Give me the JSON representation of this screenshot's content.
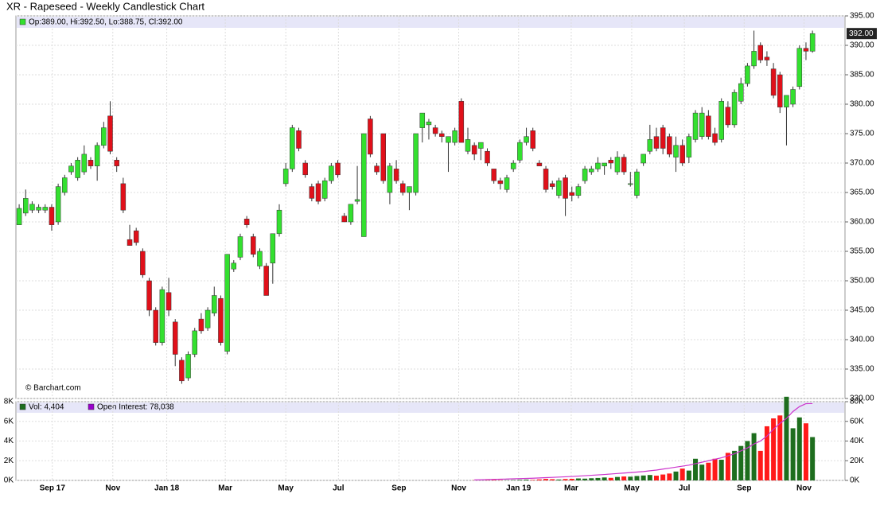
{
  "chart_data": {
    "type": "candlestick",
    "title": "XR - Rapeseed - Weekly Candlestick Chart",
    "ohlc_label": "Op:389.00, Hi:392.50, Lo:388.75, Cl:392.00",
    "volume_label": "Vol: 4,404",
    "oi_label": "Open Interest: 78,038",
    "source": "© Barchart.com",
    "last_price_label": "392.00",
    "up_color": "#33e02f",
    "down_color": "#e0101a",
    "volume_up_color": "#1e6e1e",
    "volume_down_color": "#ff1a1a",
    "oi_color": "#cc33cc",
    "grid": true,
    "xlim": [
      -0.5,
      127
    ],
    "xticks": [
      {
        "value": 5.1,
        "label": "Sep 17"
      },
      {
        "value": 14.4,
        "label": "Nov"
      },
      {
        "value": 22.7,
        "label": "Jan 18"
      },
      {
        "value": 31.7,
        "label": "Mar"
      },
      {
        "value": 41,
        "label": "May"
      },
      {
        "value": 49.1,
        "label": "Jul"
      },
      {
        "value": 58.4,
        "label": "Sep"
      },
      {
        "value": 67.6,
        "label": "Nov"
      },
      {
        "value": 76.8,
        "label": "Jan 19"
      },
      {
        "value": 84.9,
        "label": "Mar"
      },
      {
        "value": 94.2,
        "label": "May"
      },
      {
        "value": 102.3,
        "label": "Jul"
      },
      {
        "value": 111.5,
        "label": "Sep"
      },
      {
        "value": 120.7,
        "label": "Nov"
      }
    ],
    "ylim": [
      330,
      395
    ],
    "yticks": [
      {
        "value": 330,
        "label": "330.00"
      },
      {
        "value": 335,
        "label": "335.00"
      },
      {
        "value": 340,
        "label": "340.00"
      },
      {
        "value": 345,
        "label": "345.00"
      },
      {
        "value": 350,
        "label": "350.00"
      },
      {
        "value": 355,
        "label": "355.00"
      },
      {
        "value": 360,
        "label": "360.00"
      },
      {
        "value": 365,
        "label": "365.00"
      },
      {
        "value": 370,
        "label": "370.00"
      },
      {
        "value": 375,
        "label": "375.00"
      },
      {
        "value": 380,
        "label": "380.00"
      },
      {
        "value": 385,
        "label": "385.00"
      },
      {
        "value": 390,
        "label": "390.00"
      },
      {
        "value": 395,
        "label": "395.00"
      }
    ],
    "vol_lim": [
      0,
      8000
    ],
    "vol_ticks": [
      {
        "value": 0,
        "label": "0K"
      },
      {
        "value": 2000,
        "label": "2K"
      },
      {
        "value": 4000,
        "label": "4K"
      },
      {
        "value": 6000,
        "label": "6K"
      },
      {
        "value": 8000,
        "label": "8K"
      }
    ],
    "oi_lim": [
      0,
      80000
    ],
    "oi_ticks": [
      {
        "value": 0,
        "label": "0K"
      },
      {
        "value": 20000,
        "label": "20K"
      },
      {
        "value": 40000,
        "label": "40K"
      },
      {
        "value": 60000,
        "label": "60K"
      },
      {
        "value": 80000,
        "label": "80K"
      }
    ],
    "ohlc": [
      [
        359.5,
        363,
        359.5,
        362.3
      ],
      [
        361.5,
        365.5,
        361,
        364
      ],
      [
        362,
        363.5,
        361.5,
        363
      ],
      [
        362,
        363,
        361.5,
        362.5
      ],
      [
        362,
        363,
        361.5,
        362.5
      ],
      [
        362.5,
        363,
        358.5,
        359.5
      ],
      [
        360,
        366.5,
        359.5,
        366
      ],
      [
        365,
        368,
        364.5,
        367.5
      ],
      [
        368.5,
        370,
        368,
        369.5
      ],
      [
        367.5,
        371,
        367,
        370.5
      ],
      [
        368.5,
        373,
        368,
        371.5
      ],
      [
        370.5,
        371,
        369,
        369.5
      ],
      [
        369.5,
        373.5,
        367,
        373
      ],
      [
        373,
        377,
        372.5,
        376
      ],
      [
        378,
        380.5,
        371.5,
        372
      ],
      [
        370.5,
        371,
        368.5,
        369.5
      ],
      [
        366.5,
        367.5,
        361.5,
        362
      ],
      [
        357,
        359.5,
        356,
        356
      ],
      [
        358.5,
        359,
        356,
        356.5
      ],
      [
        355,
        355.5,
        350.5,
        351
      ],
      [
        350,
        350.5,
        344,
        345
      ],
      [
        345,
        345.5,
        339,
        339.5
      ],
      [
        339.5,
        349,
        339,
        348.5
      ],
      [
        348,
        350.5,
        344,
        345
      ],
      [
        343,
        343.5,
        335.5,
        337.5
      ],
      [
        336.5,
        337,
        332.5,
        333
      ],
      [
        333.5,
        338,
        333,
        337.5
      ],
      [
        337.5,
        342,
        337,
        341.5
      ],
      [
        343.5,
        344.5,
        341,
        341.5
      ],
      [
        342,
        345.5,
        341.5,
        345
      ],
      [
        344.5,
        349,
        344,
        347.5
      ],
      [
        347,
        347.5,
        339,
        339.5
      ],
      [
        338,
        354.5,
        337.5,
        354.5
      ],
      [
        352,
        353.5,
        351.5,
        353
      ],
      [
        354,
        358,
        353.5,
        357.5
      ],
      [
        360.5,
        361,
        359,
        359.5
      ],
      [
        357.5,
        358,
        354,
        354.5
      ],
      [
        352.5,
        355.5,
        352,
        355
      ],
      [
        352.5,
        353,
        347.5,
        347.5
      ],
      [
        353,
        358,
        349.5,
        358
      ],
      [
        358,
        363,
        357.5,
        362
      ],
      [
        366.5,
        370,
        366,
        369
      ],
      [
        369,
        376.5,
        368.5,
        376
      ],
      [
        375.5,
        376,
        372,
        372.5
      ],
      [
        370,
        370.5,
        367.5,
        368
      ],
      [
        366,
        366.5,
        363.5,
        364
      ],
      [
        366.5,
        367,
        363,
        363.5
      ],
      [
        364,
        367.5,
        363.5,
        367
      ],
      [
        367,
        370,
        366.5,
        369.5
      ],
      [
        370,
        370.5,
        367.5,
        368
      ],
      [
        361,
        361.5,
        360,
        360
      ],
      [
        360,
        363,
        359.5,
        363
      ],
      [
        363.5,
        369.5,
        363,
        363.8
      ],
      [
        357.5,
        375,
        357.5,
        375
      ],
      [
        377.5,
        378,
        371,
        371.5
      ],
      [
        369.5,
        370,
        368,
        368.5
      ],
      [
        375,
        375,
        366.5,
        367
      ],
      [
        365,
        370,
        363,
        369.5
      ],
      [
        369,
        370.5,
        366.5,
        367
      ],
      [
        366.5,
        367,
        364.5,
        365
      ],
      [
        365,
        366,
        362,
        366
      ],
      [
        365,
        375,
        364.5,
        375
      ],
      [
        376,
        378.5,
        373.5,
        378.5
      ],
      [
        376.5,
        377.5,
        374,
        377
      ],
      [
        376,
        376.5,
        374.5,
        375
      ],
      [
        375,
        375.5,
        373.5,
        374.5
      ],
      [
        373.5,
        374.5,
        368.5,
        374.5
      ],
      [
        373.5,
        376,
        373,
        375.5
      ],
      [
        380.5,
        381,
        373.5,
        373.5
      ],
      [
        372,
        376,
        371.5,
        374
      ],
      [
        373,
        373.5,
        370.5,
        371.5
      ],
      [
        372.5,
        373.5,
        370.5,
        373.5
      ],
      [
        372,
        372.5,
        369.5,
        370
      ],
      [
        369,
        369,
        366.5,
        367
      ],
      [
        367,
        367.5,
        365.5,
        366.5
      ],
      [
        365.5,
        368,
        365,
        367.5
      ],
      [
        369,
        370.5,
        368.5,
        370
      ],
      [
        370.5,
        374,
        370,
        373.5
      ],
      [
        373.5,
        376,
        373,
        374.5
      ],
      [
        375.5,
        376,
        372,
        372.5
      ],
      [
        370,
        370.5,
        369.5,
        369.5
      ],
      [
        369,
        369.5,
        365,
        365.5
      ],
      [
        366.5,
        367,
        365.5,
        366
      ],
      [
        364.5,
        367.5,
        364,
        367
      ],
      [
        367.5,
        368,
        361,
        364
      ],
      [
        365,
        366,
        363.5,
        364.5
      ],
      [
        364.5,
        366.5,
        364,
        366
      ],
      [
        367,
        369.5,
        366.5,
        369
      ],
      [
        368.5,
        369.5,
        368,
        369
      ],
      [
        369,
        371,
        368.5,
        370
      ],
      [
        369.5,
        370,
        368,
        370
      ],
      [
        370.5,
        371,
        369,
        370
      ],
      [
        368.5,
        372,
        368,
        371
      ],
      [
        371,
        371.5,
        368,
        368.5
      ],
      [
        366.5,
        368.5,
        366,
        366.5
      ],
      [
        364.5,
        369,
        364,
        368.5
      ],
      [
        370,
        371.5,
        369.5,
        371.5
      ],
      [
        372,
        376.5,
        371.5,
        374
      ],
      [
        374.5,
        376,
        372,
        372.5
      ],
      [
        376,
        376.5,
        371.5,
        372.5
      ],
      [
        374.5,
        375,
        371,
        371.5
      ],
      [
        371,
        374.5,
        368.5,
        373
      ],
      [
        373,
        374,
        369.5,
        370
      ],
      [
        371,
        375,
        370,
        374.5
      ],
      [
        374,
        379,
        373.5,
        378.5
      ],
      [
        374.5,
        379.5,
        374,
        378.5
      ],
      [
        378,
        379,
        374,
        374.5
      ],
      [
        375,
        376,
        373,
        373.5
      ],
      [
        374,
        381,
        373.5,
        380.5
      ],
      [
        379.5,
        380.5,
        376,
        376.5
      ],
      [
        376.5,
        382.5,
        376,
        382
      ],
      [
        380.5,
        384.5,
        380,
        383.5
      ],
      [
        383.5,
        387,
        383,
        386.5
      ],
      [
        386.5,
        392.5,
        386,
        389
      ],
      [
        390,
        390.5,
        387,
        387.5
      ],
      [
        388,
        389,
        386.5,
        387.5
      ],
      [
        386,
        387,
        381,
        381.5
      ],
      [
        385,
        385.5,
        378.5,
        379.5
      ],
      [
        379.5,
        381,
        373,
        381.5
      ],
      [
        380,
        383,
        379.5,
        382.5
      ],
      [
        383,
        390,
        382.5,
        389.5
      ],
      [
        389.5,
        390.5,
        387.5,
        389
      ],
      [
        389,
        392.5,
        388.75,
        392
      ]
    ],
    "volume": [
      null,
      null,
      null,
      null,
      null,
      null,
      null,
      null,
      null,
      null,
      null,
      null,
      null,
      null,
      null,
      null,
      null,
      null,
      null,
      null,
      null,
      null,
      null,
      null,
      null,
      null,
      null,
      null,
      null,
      null,
      null,
      null,
      null,
      null,
      null,
      null,
      null,
      null,
      null,
      null,
      null,
      null,
      null,
      null,
      null,
      null,
      null,
      null,
      null,
      null,
      null,
      null,
      null,
      null,
      null,
      null,
      null,
      null,
      null,
      null,
      null,
      null,
      null,
      null,
      null,
      null,
      null,
      null,
      null,
      null,
      20,
      10,
      30,
      50,
      30,
      20,
      40,
      60,
      80,
      50,
      100,
      150,
      120,
      90,
      140,
      160,
      200,
      180,
      220,
      250,
      300,
      260,
      350,
      400,
      380,
      450,
      500,
      550,
      480,
      600,
      700,
      900,
      1200,
      1000,
      2200,
      1600,
      1800,
      2200,
      2100,
      2800,
      3000,
      3500,
      4000,
      4800,
      3000,
      5500,
      6300,
      6600,
      8500,
      5300,
      6400,
      5800,
      4404
    ],
    "open_interest": [
      null,
      null,
      null,
      null,
      null,
      null,
      null,
      null,
      null,
      null,
      null,
      null,
      null,
      null,
      null,
      null,
      null,
      null,
      null,
      null,
      null,
      null,
      null,
      null,
      null,
      null,
      null,
      null,
      null,
      null,
      null,
      null,
      null,
      null,
      null,
      null,
      null,
      null,
      null,
      null,
      null,
      null,
      null,
      null,
      null,
      null,
      null,
      null,
      null,
      null,
      null,
      null,
      null,
      null,
      null,
      null,
      null,
      null,
      null,
      null,
      null,
      null,
      null,
      null,
      null,
      null,
      null,
      null,
      null,
      null,
      500,
      600,
      800,
      1000,
      1200,
      1400,
      1600,
      1800,
      2000,
      2200,
      2500,
      2800,
      3100,
      3400,
      3700,
      4000,
      4400,
      4800,
      5200,
      5600,
      6000,
      6500,
      7000,
      7500,
      8000,
      8500,
      9000,
      9800,
      10500,
      11500,
      12500,
      13500,
      14500,
      15500,
      17000,
      18500,
      20000,
      21500,
      23000,
      25000,
      27000,
      30000,
      33000,
      37000,
      40000,
      45000,
      52000,
      58000,
      63000,
      70000,
      75000,
      78000,
      78038
    ]
  }
}
